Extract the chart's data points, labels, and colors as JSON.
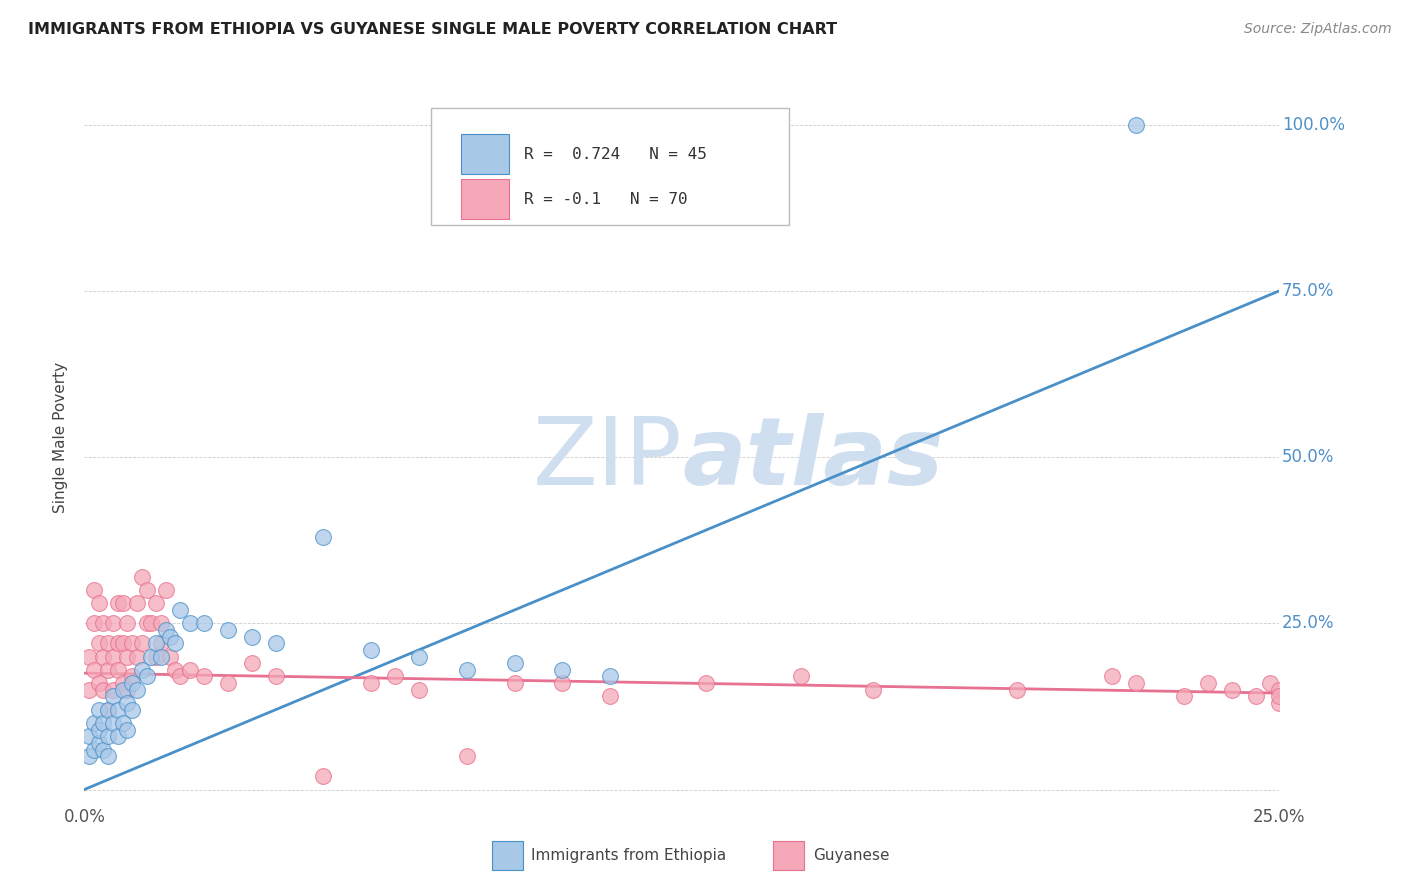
{
  "title": "IMMIGRANTS FROM ETHIOPIA VS GUYANESE SINGLE MALE POVERTY CORRELATION CHART",
  "source": "Source: ZipAtlas.com",
  "ylabel": "Single Male Poverty",
  "xlim": [
    0.0,
    0.25
  ],
  "ylim": [
    -0.02,
    1.08
  ],
  "x_ticks": [
    0.0,
    0.25
  ],
  "x_tick_labels": [
    "0.0%",
    "25.0%"
  ],
  "y_ticks": [
    0.0,
    0.25,
    0.5,
    0.75,
    1.0
  ],
  "y_tick_labels": [
    "",
    "25.0%",
    "50.0%",
    "75.0%",
    "100.0%"
  ],
  "blue_R": 0.724,
  "blue_N": 45,
  "pink_R": -0.1,
  "pink_N": 70,
  "blue_color": "#A8C8E8",
  "pink_color": "#F4A8B8",
  "blue_line_color": "#4A90C8",
  "pink_line_color": "#E87090",
  "blue_tick_color": "#5090C8",
  "watermark_color": "#D0DFF0",
  "legend_label_blue": "Immigrants from Ethiopia",
  "legend_label_pink": "Guyanese",
  "blue_line_x0": 0.0,
  "blue_line_y0": 0.0,
  "blue_line_x1": 0.25,
  "blue_line_y1": 0.75,
  "pink_line_x0": 0.0,
  "pink_line_y0": 0.175,
  "pink_line_x1": 0.25,
  "pink_line_y1": 0.145,
  "blue_scatter_x": [
    0.001,
    0.001,
    0.002,
    0.002,
    0.003,
    0.003,
    0.003,
    0.004,
    0.004,
    0.005,
    0.005,
    0.005,
    0.006,
    0.006,
    0.007,
    0.007,
    0.008,
    0.008,
    0.009,
    0.009,
    0.01,
    0.01,
    0.011,
    0.012,
    0.013,
    0.014,
    0.015,
    0.016,
    0.017,
    0.018,
    0.019,
    0.02,
    0.022,
    0.025,
    0.03,
    0.035,
    0.04,
    0.05,
    0.06,
    0.07,
    0.08,
    0.09,
    0.1,
    0.11,
    0.22
  ],
  "blue_scatter_y": [
    0.05,
    0.08,
    0.06,
    0.1,
    0.07,
    0.09,
    0.12,
    0.06,
    0.1,
    0.08,
    0.12,
    0.05,
    0.1,
    0.14,
    0.08,
    0.12,
    0.1,
    0.15,
    0.09,
    0.13,
    0.12,
    0.16,
    0.15,
    0.18,
    0.17,
    0.2,
    0.22,
    0.2,
    0.24,
    0.23,
    0.22,
    0.27,
    0.25,
    0.25,
    0.24,
    0.23,
    0.22,
    0.38,
    0.21,
    0.2,
    0.18,
    0.19,
    0.18,
    0.17,
    1.0
  ],
  "pink_scatter_x": [
    0.001,
    0.001,
    0.002,
    0.002,
    0.002,
    0.003,
    0.003,
    0.003,
    0.004,
    0.004,
    0.004,
    0.005,
    0.005,
    0.005,
    0.006,
    0.006,
    0.006,
    0.007,
    0.007,
    0.007,
    0.008,
    0.008,
    0.008,
    0.009,
    0.009,
    0.009,
    0.01,
    0.01,
    0.011,
    0.011,
    0.012,
    0.012,
    0.013,
    0.013,
    0.014,
    0.015,
    0.015,
    0.016,
    0.016,
    0.017,
    0.018,
    0.019,
    0.02,
    0.022,
    0.025,
    0.03,
    0.035,
    0.04,
    0.05,
    0.06,
    0.065,
    0.07,
    0.08,
    0.09,
    0.1,
    0.11,
    0.13,
    0.15,
    0.165,
    0.195,
    0.215,
    0.22,
    0.23,
    0.235,
    0.24,
    0.245,
    0.248,
    0.25,
    0.25,
    0.25
  ],
  "pink_scatter_y": [
    0.2,
    0.15,
    0.25,
    0.18,
    0.3,
    0.22,
    0.28,
    0.16,
    0.2,
    0.25,
    0.15,
    0.18,
    0.22,
    0.12,
    0.2,
    0.25,
    0.15,
    0.18,
    0.22,
    0.28,
    0.16,
    0.22,
    0.28,
    0.15,
    0.2,
    0.25,
    0.17,
    0.22,
    0.2,
    0.28,
    0.22,
    0.32,
    0.25,
    0.3,
    0.25,
    0.2,
    0.28,
    0.22,
    0.25,
    0.3,
    0.2,
    0.18,
    0.17,
    0.18,
    0.17,
    0.16,
    0.19,
    0.17,
    0.02,
    0.16,
    0.17,
    0.15,
    0.05,
    0.16,
    0.16,
    0.14,
    0.16,
    0.17,
    0.15,
    0.15,
    0.17,
    0.16,
    0.14,
    0.16,
    0.15,
    0.14,
    0.16,
    0.15,
    0.13,
    0.14
  ]
}
